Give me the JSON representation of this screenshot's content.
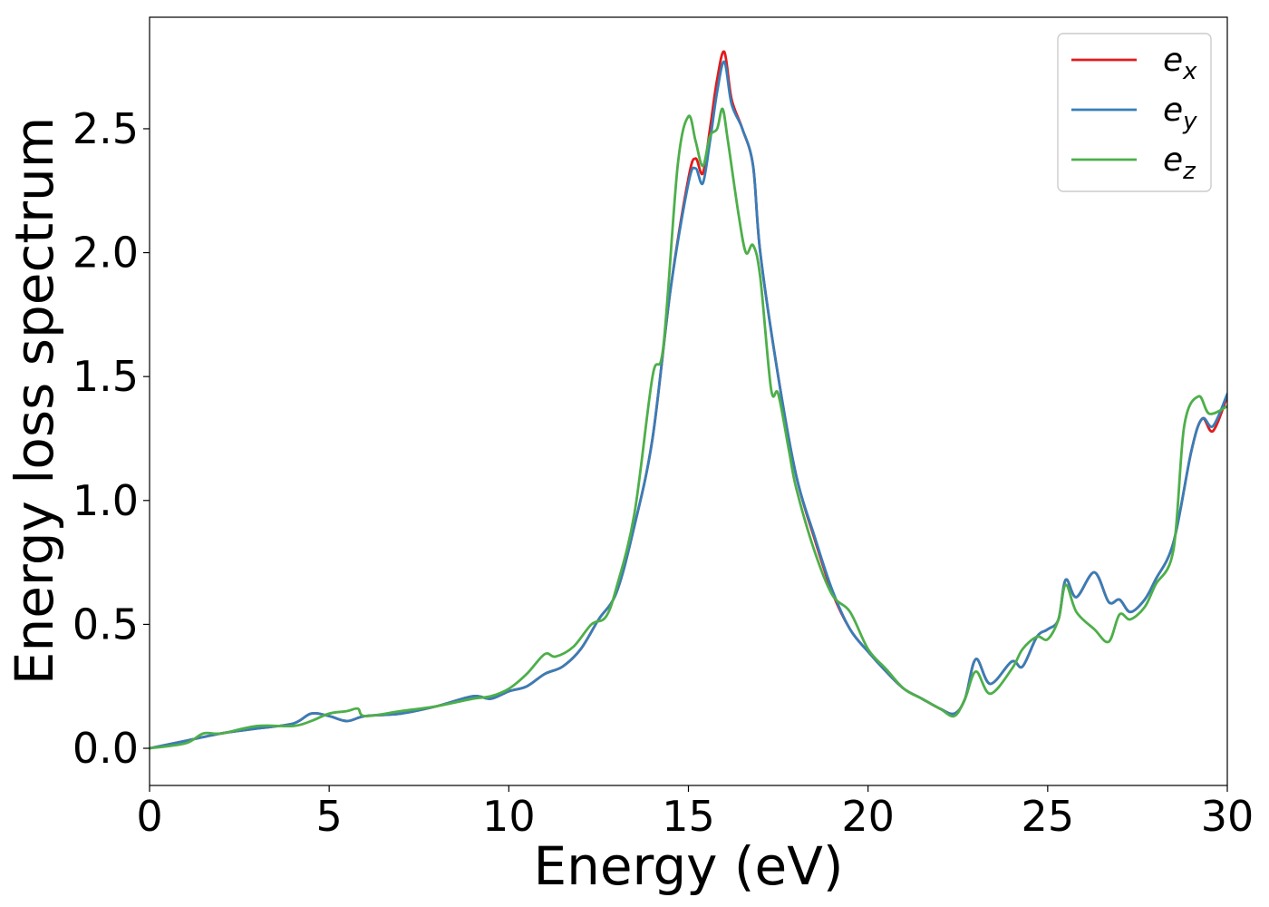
{
  "chart_data": {
    "type": "line",
    "title": "",
    "xlabel": "Energy (eV)",
    "ylabel": "Energy loss spectrum",
    "xlim": [
      0,
      30
    ],
    "ylim": [
      -0.15,
      2.95
    ],
    "xticks": [
      0,
      5,
      10,
      15,
      20,
      25,
      30
    ],
    "xtick_labels": [
      "0",
      "5",
      "10",
      "15",
      "20",
      "25",
      "30"
    ],
    "yticks": [
      0.0,
      0.5,
      1.0,
      1.5,
      2.0,
      2.5
    ],
    "ytick_labels": [
      "0.0",
      "0.5",
      "1.0",
      "1.5",
      "2.0",
      "2.5"
    ],
    "grid": false,
    "legend_position": "top-right",
    "series": [
      {
        "name": "e",
        "subscript": "x",
        "color": "#e41a1c",
        "points": [
          [
            0,
            0
          ],
          [
            1,
            0.03
          ],
          [
            2,
            0.06
          ],
          [
            3,
            0.08
          ],
          [
            4,
            0.1
          ],
          [
            4.5,
            0.14
          ],
          [
            5,
            0.13
          ],
          [
            5.5,
            0.11
          ],
          [
            6,
            0.13
          ],
          [
            7,
            0.14
          ],
          [
            8,
            0.17
          ],
          [
            9,
            0.21
          ],
          [
            9.5,
            0.2
          ],
          [
            10,
            0.23
          ],
          [
            10.5,
            0.25
          ],
          [
            11,
            0.3
          ],
          [
            11.5,
            0.33
          ],
          [
            12,
            0.4
          ],
          [
            12.5,
            0.52
          ],
          [
            13,
            0.63
          ],
          [
            13.5,
            0.9
          ],
          [
            14,
            1.25
          ],
          [
            14.5,
            1.85
          ],
          [
            15,
            2.3
          ],
          [
            15.2,
            2.38
          ],
          [
            15.4,
            2.32
          ],
          [
            15.6,
            2.5
          ],
          [
            15.8,
            2.7
          ],
          [
            16,
            2.81
          ],
          [
            16.2,
            2.62
          ],
          [
            16.5,
            2.5
          ],
          [
            16.8,
            2.35
          ],
          [
            17,
            2.0
          ],
          [
            17.5,
            1.5
          ],
          [
            18,
            1.1
          ],
          [
            18.5,
            0.85
          ],
          [
            19,
            0.63
          ],
          [
            19.5,
            0.48
          ],
          [
            20,
            0.39
          ],
          [
            20.5,
            0.31
          ],
          [
            21,
            0.24
          ],
          [
            21.5,
            0.2
          ],
          [
            22,
            0.16
          ],
          [
            22.4,
            0.14
          ],
          [
            22.7,
            0.2
          ],
          [
            23,
            0.36
          ],
          [
            23.4,
            0.26
          ],
          [
            24,
            0.35
          ],
          [
            24.3,
            0.33
          ],
          [
            24.7,
            0.45
          ],
          [
            25,
            0.48
          ],
          [
            25.3,
            0.52
          ],
          [
            25.5,
            0.68
          ],
          [
            25.8,
            0.61
          ],
          [
            26.3,
            0.71
          ],
          [
            26.7,
            0.59
          ],
          [
            27,
            0.6
          ],
          [
            27.3,
            0.55
          ],
          [
            27.7,
            0.6
          ],
          [
            28,
            0.68
          ],
          [
            28.5,
            0.83
          ],
          [
            29,
            1.2
          ],
          [
            29.3,
            1.33
          ],
          [
            29.6,
            1.28
          ],
          [
            30,
            1.42
          ]
        ]
      },
      {
        "name": "e",
        "subscript": "y",
        "color": "#377eb8",
        "points": [
          [
            0,
            0
          ],
          [
            1,
            0.03
          ],
          [
            2,
            0.06
          ],
          [
            3,
            0.08
          ],
          [
            4,
            0.1
          ],
          [
            4.5,
            0.14
          ],
          [
            5,
            0.13
          ],
          [
            5.5,
            0.11
          ],
          [
            6,
            0.13
          ],
          [
            7,
            0.14
          ],
          [
            8,
            0.17
          ],
          [
            9,
            0.21
          ],
          [
            9.5,
            0.2
          ],
          [
            10,
            0.23
          ],
          [
            10.5,
            0.25
          ],
          [
            11,
            0.3
          ],
          [
            11.5,
            0.33
          ],
          [
            12,
            0.4
          ],
          [
            12.5,
            0.52
          ],
          [
            13,
            0.63
          ],
          [
            13.5,
            0.9
          ],
          [
            14,
            1.25
          ],
          [
            14.5,
            1.85
          ],
          [
            15,
            2.28
          ],
          [
            15.2,
            2.34
          ],
          [
            15.4,
            2.28
          ],
          [
            15.6,
            2.45
          ],
          [
            15.8,
            2.65
          ],
          [
            16,
            2.77
          ],
          [
            16.2,
            2.6
          ],
          [
            16.5,
            2.5
          ],
          [
            16.8,
            2.35
          ],
          [
            17,
            2.0
          ],
          [
            17.5,
            1.5
          ],
          [
            18,
            1.1
          ],
          [
            18.5,
            0.86
          ],
          [
            19,
            0.64
          ],
          [
            19.5,
            0.48
          ],
          [
            20,
            0.39
          ],
          [
            20.5,
            0.31
          ],
          [
            21,
            0.24
          ],
          [
            21.5,
            0.2
          ],
          [
            22,
            0.16
          ],
          [
            22.4,
            0.14
          ],
          [
            22.7,
            0.2
          ],
          [
            23,
            0.36
          ],
          [
            23.4,
            0.26
          ],
          [
            24,
            0.35
          ],
          [
            24.3,
            0.33
          ],
          [
            24.7,
            0.45
          ],
          [
            25,
            0.48
          ],
          [
            25.3,
            0.52
          ],
          [
            25.5,
            0.68
          ],
          [
            25.8,
            0.61
          ],
          [
            26.3,
            0.71
          ],
          [
            26.7,
            0.59
          ],
          [
            27,
            0.6
          ],
          [
            27.3,
            0.55
          ],
          [
            27.7,
            0.6
          ],
          [
            28,
            0.68
          ],
          [
            28.5,
            0.83
          ],
          [
            29,
            1.2
          ],
          [
            29.3,
            1.33
          ],
          [
            29.6,
            1.3
          ],
          [
            30,
            1.43
          ]
        ]
      },
      {
        "name": "e",
        "subscript": "z",
        "color": "#4daf4a",
        "points": [
          [
            0,
            0
          ],
          [
            1,
            0.02
          ],
          [
            1.5,
            0.06
          ],
          [
            2,
            0.06
          ],
          [
            3,
            0.09
          ],
          [
            4,
            0.09
          ],
          [
            4.5,
            0.11
          ],
          [
            5,
            0.14
          ],
          [
            5.5,
            0.15
          ],
          [
            5.8,
            0.16
          ],
          [
            6,
            0.13
          ],
          [
            7,
            0.15
          ],
          [
            8,
            0.17
          ],
          [
            9,
            0.2
          ],
          [
            9.5,
            0.21
          ],
          [
            10,
            0.24
          ],
          [
            10.5,
            0.3
          ],
          [
            11,
            0.38
          ],
          [
            11.3,
            0.37
          ],
          [
            11.8,
            0.41
          ],
          [
            12.3,
            0.5
          ],
          [
            12.7,
            0.53
          ],
          [
            13,
            0.65
          ],
          [
            13.5,
            0.95
          ],
          [
            14,
            1.5
          ],
          [
            14.3,
            1.62
          ],
          [
            14.7,
            2.35
          ],
          [
            15,
            2.55
          ],
          [
            15.2,
            2.45
          ],
          [
            15.4,
            2.35
          ],
          [
            15.6,
            2.47
          ],
          [
            15.8,
            2.5
          ],
          [
            15.95,
            2.58
          ],
          [
            16.1,
            2.45
          ],
          [
            16.4,
            2.15
          ],
          [
            16.6,
            2.0
          ],
          [
            16.8,
            2.03
          ],
          [
            17,
            1.9
          ],
          [
            17.3,
            1.45
          ],
          [
            17.5,
            1.43
          ],
          [
            17.8,
            1.2
          ],
          [
            18,
            1.05
          ],
          [
            18.5,
            0.8
          ],
          [
            19,
            0.62
          ],
          [
            19.5,
            0.55
          ],
          [
            20,
            0.4
          ],
          [
            20.5,
            0.32
          ],
          [
            21,
            0.24
          ],
          [
            21.5,
            0.2
          ],
          [
            22,
            0.16
          ],
          [
            22.4,
            0.13
          ],
          [
            22.7,
            0.2
          ],
          [
            23,
            0.31
          ],
          [
            23.4,
            0.22
          ],
          [
            24,
            0.32
          ],
          [
            24.3,
            0.4
          ],
          [
            24.7,
            0.45
          ],
          [
            25,
            0.44
          ],
          [
            25.3,
            0.52
          ],
          [
            25.5,
            0.66
          ],
          [
            25.8,
            0.55
          ],
          [
            26.3,
            0.48
          ],
          [
            26.7,
            0.43
          ],
          [
            27,
            0.54
          ],
          [
            27.3,
            0.52
          ],
          [
            27.7,
            0.57
          ],
          [
            28,
            0.66
          ],
          [
            28.5,
            0.8
          ],
          [
            28.8,
            1.3
          ],
          [
            29.2,
            1.42
          ],
          [
            29.5,
            1.35
          ],
          [
            30,
            1.38
          ]
        ]
      }
    ]
  }
}
